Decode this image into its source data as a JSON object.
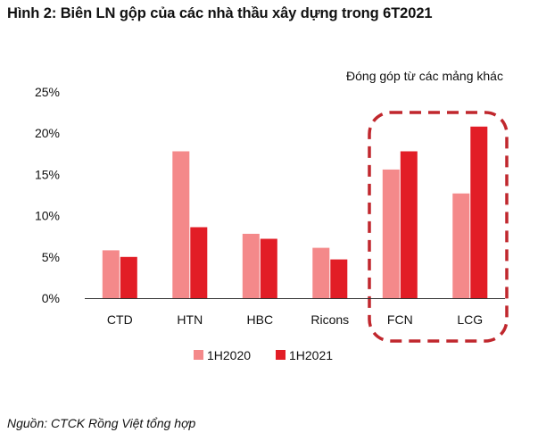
{
  "title": "Hình 2: Biên LN gộp của các nhà thầu xây dựng trong 6T2021",
  "source": "Nguồn: CTCK Rồng Việt tổng hợp",
  "colors": {
    "series_2020": "#f4898a",
    "series_2021": "#e21d26",
    "highlight": "#c0272d",
    "axis": "#333333"
  },
  "chart_data": {
    "type": "bar",
    "title": "Hình 2: Biên LN gộp của các nhà thầu xây dựng trong 6T2021",
    "xlabel": "",
    "ylabel": "",
    "categories": [
      "CTD",
      "HTN",
      "HBC",
      "Ricons",
      "FCN",
      "LCG"
    ],
    "series": [
      {
        "name": "1H2020",
        "values": [
          5.8,
          17.8,
          7.8,
          6.1,
          15.6,
          12.7
        ]
      },
      {
        "name": "1H2021",
        "values": [
          5.0,
          8.6,
          7.2,
          4.7,
          17.8,
          20.8
        ]
      }
    ],
    "ylim": [
      0,
      25
    ],
    "yticks": [
      "0%",
      "5%",
      "10%",
      "15%",
      "20%",
      "25%"
    ],
    "ytick_values": [
      0,
      5,
      10,
      15,
      20,
      25
    ],
    "grid": false,
    "legend": "bottom-center",
    "annotation": {
      "text": "Đóng góp từ các mảng khác",
      "categories": [
        "FCN",
        "LCG"
      ]
    }
  }
}
